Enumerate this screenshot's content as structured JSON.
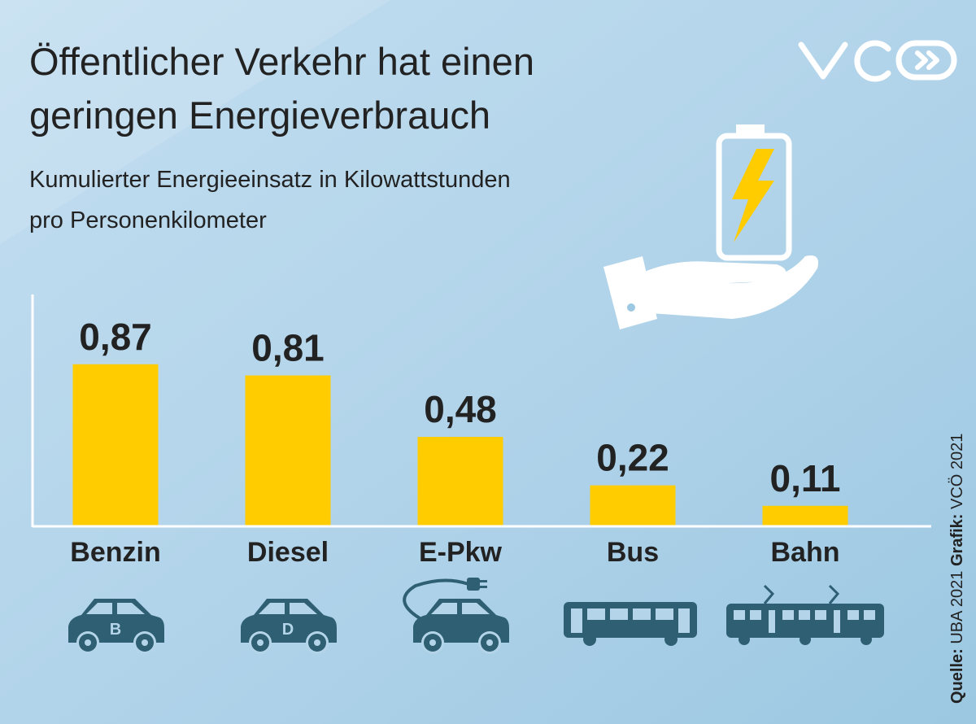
{
  "chart_data": {
    "type": "bar",
    "title_lines": [
      "Öffentlicher Verkehr hat einen",
      "geringen Energieverbrauch"
    ],
    "subtitle_lines": [
      "Kumulierter Energieeinsatz in Kilowattstunden",
      "pro Personenkilometer"
    ],
    "categories": [
      "Benzin",
      "Diesel",
      "E-Pkw",
      "Bus",
      "Bahn"
    ],
    "values": [
      0.87,
      0.81,
      0.48,
      0.22,
      0.11
    ],
    "value_labels": [
      "0,87",
      "0,81",
      "0,48",
      "0,22",
      "0,11"
    ],
    "color": "#ffcc00",
    "icon_letters": [
      "B",
      "D"
    ],
    "source": {
      "label1": "Quelle:",
      "text1": " UBA 2021 ",
      "label2": "Grafik:",
      "text2": " VCÖ 2021"
    }
  }
}
